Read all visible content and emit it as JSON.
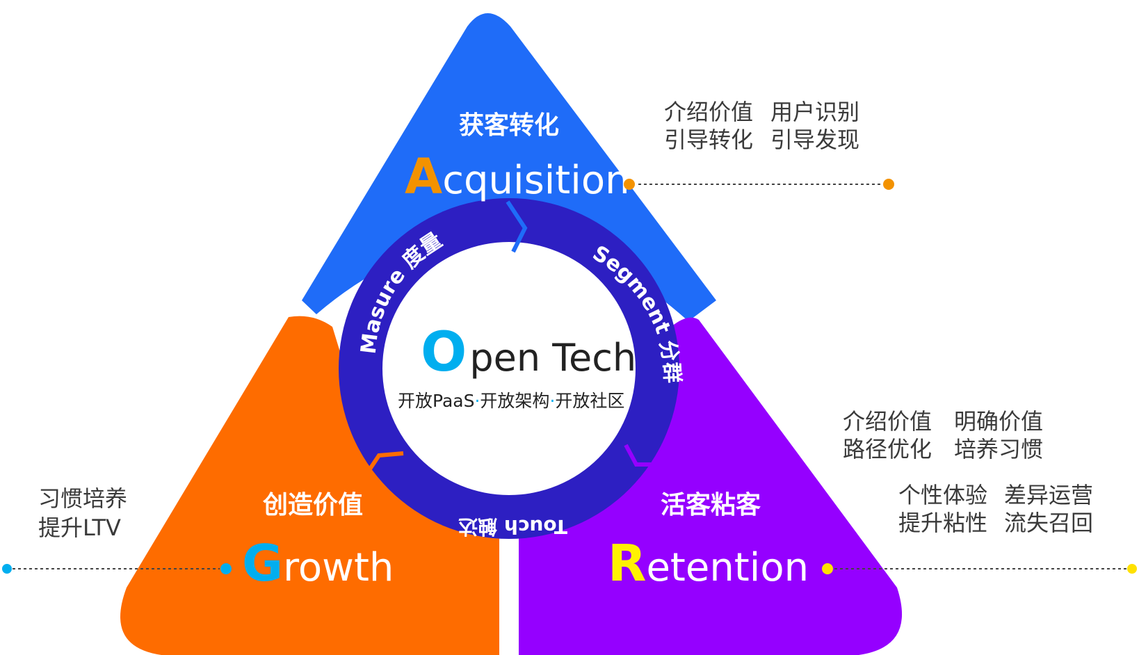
{
  "colors": {
    "acquisition_blue": "#1f6cf8",
    "growth_orange": "#fe6c00",
    "retention_purple": "#9500ff",
    "ring_navy": "#2d1fc2",
    "letter_orange": "#f39200",
    "letter_cyan": "#00aeef",
    "letter_yellow": "#fff200",
    "connector_orange": "#f39200",
    "connector_cyan": "#00aeef",
    "connector_yellow": "#ffe100",
    "side_text": "#3a3a3a",
    "center_text": "#222222"
  },
  "center": {
    "title_initial": "O",
    "title_rest": "pen Tech",
    "subtitle_part1": "开放PaaS",
    "subtitle_part2": "开放架构",
    "subtitle_part3": "开放社区",
    "dot": "·"
  },
  "ring": {
    "measure": "Masure 度量",
    "segment": "Segment 分群",
    "touch": "Touch 触达"
  },
  "acquisition": {
    "cn": "获客转化",
    "initial": "A",
    "rest": "cquisition",
    "notes": [
      "介绍价值",
      "用户识别",
      "引导转化",
      "引导发现"
    ]
  },
  "growth": {
    "cn": "创造价值",
    "initial": "G",
    "rest": "rowth",
    "notes": [
      "习惯培养",
      "提升LTV"
    ]
  },
  "retention": {
    "cn": "活客粘客",
    "initial": "R",
    "rest": "etention",
    "notes": [
      "介绍价值",
      "明确价值",
      "路径优化",
      "培养习惯",
      "个性体验",
      "差异运营",
      "提升粘性",
      "流失召回"
    ]
  }
}
